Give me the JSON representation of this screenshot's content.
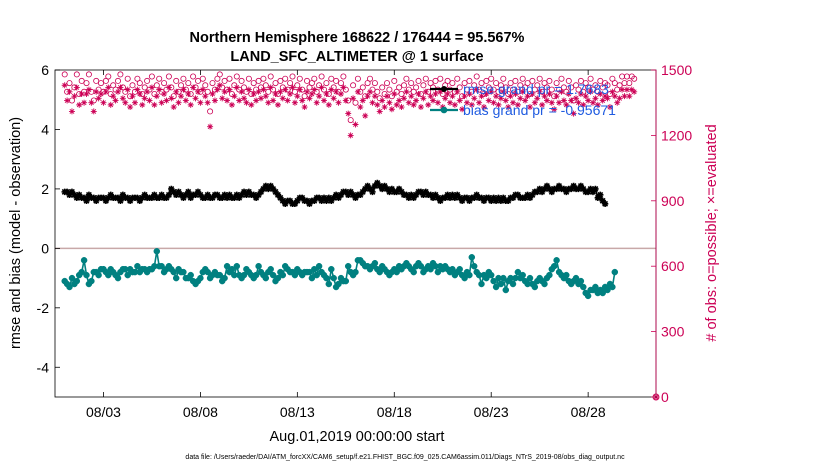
{
  "chart_data": {
    "type": "line",
    "title": "Northern Hemisphere 168622 / 176444 = 95.567%",
    "subtitle": "LAND_SFC_ALTIMETER @ 1 surface",
    "xlabel": "Aug.01,2019 00:00:00 start",
    "ylabel": "rmse and bias (model - observation)",
    "ylabel_right": "# of obs: o=possible; ×=evaluated",
    "xlim": [
      0,
      31
    ],
    "ylim": [
      -5,
      6
    ],
    "ylim_right": [
      0,
      1500
    ],
    "x_tick_positions": [
      2.5,
      7.5,
      12.5,
      17.5,
      22.5,
      27.5
    ],
    "x_tick_labels": [
      "08/03",
      "08/08",
      "08/13",
      "08/18",
      "08/23",
      "08/28"
    ],
    "y_ticks": [
      -4,
      -2,
      0,
      2,
      4,
      6
    ],
    "y_tick_labels": [
      "-4",
      "-2",
      "0",
      "2",
      "4",
      "6"
    ],
    "y_right_ticks": [
      0,
      300,
      600,
      900,
      1200,
      1500
    ],
    "y_right_tick_labels": [
      "0",
      "300",
      "600",
      "900",
      "1200",
      "1500"
    ],
    "zero_line": 0,
    "points_per_day": 8,
    "series": [
      {
        "name": "rmse",
        "legend": "rmse grand pr =  1.7683",
        "color": "#000000",
        "marker": "star-filled",
        "axis": "left",
        "values": [
          1.9,
          1.9,
          1.8,
          1.9,
          1.8,
          1.7,
          1.8,
          1.7,
          1.7,
          1.6,
          1.8,
          1.7,
          1.7,
          1.6,
          1.7,
          1.7,
          1.7,
          1.6,
          1.7,
          1.8,
          1.7,
          1.7,
          1.7,
          1.6,
          1.8,
          1.7,
          1.7,
          1.6,
          1.7,
          1.7,
          1.7,
          1.6,
          1.7,
          1.8,
          1.7,
          1.7,
          1.7,
          1.8,
          1.7,
          1.7,
          1.8,
          1.7,
          1.7,
          1.8,
          2.0,
          1.9,
          1.8,
          1.9,
          1.8,
          1.7,
          1.8,
          1.9,
          1.7,
          1.8,
          1.8,
          1.9,
          1.8,
          1.7,
          1.7,
          1.8,
          1.7,
          1.7,
          1.8,
          1.8,
          1.7,
          1.7,
          1.8,
          1.7,
          1.8,
          1.7,
          1.7,
          1.8,
          1.7,
          1.8,
          1.9,
          1.8,
          1.9,
          1.8,
          1.8,
          1.7,
          1.8,
          1.9,
          2.0,
          2.1,
          2.0,
          2.1,
          2.0,
          1.9,
          1.8,
          1.7,
          1.6,
          1.5,
          1.6,
          1.6,
          1.5,
          1.5,
          1.6,
          1.7,
          1.7,
          1.6,
          1.6,
          1.5,
          1.6,
          1.6,
          1.7,
          1.7,
          1.6,
          1.7,
          1.6,
          1.7,
          1.6,
          1.7,
          1.8,
          1.7,
          1.8,
          1.9,
          1.9,
          1.8,
          1.9,
          1.8,
          1.7,
          1.8,
          1.8,
          1.9,
          2.0,
          2.1,
          2.0,
          1.9,
          2.1,
          2.2,
          2.1,
          2.0,
          2.1,
          2.0,
          1.9,
          2.0,
          1.9,
          1.9,
          2.0,
          1.9,
          1.8,
          1.8,
          1.7,
          1.8,
          1.7,
          1.8,
          1.9,
          1.9,
          1.8,
          1.9,
          1.8,
          1.8,
          1.7,
          1.8,
          1.7,
          1.6,
          1.7,
          1.7,
          1.8,
          1.7,
          1.8,
          1.7,
          1.8,
          1.7,
          1.6,
          1.7,
          1.7,
          1.6,
          1.7,
          1.7,
          1.8,
          1.7,
          1.7,
          1.6,
          1.7,
          1.7,
          1.6,
          1.7,
          1.6,
          1.7,
          1.6,
          1.7,
          1.6,
          1.6,
          1.7,
          1.7,
          1.8,
          1.8,
          1.7,
          1.7,
          1.7,
          1.8,
          1.7,
          1.8,
          1.9,
          1.9,
          2.0,
          1.9,
          2.0,
          2.1,
          2.0,
          1.9,
          2.0,
          2.0,
          2.1,
          2.0,
          2.0,
          1.9,
          2.0,
          2.0,
          2.1,
          2.0,
          2.0,
          2.1,
          2.0,
          1.9,
          1.9,
          2.0,
          1.9,
          2.0,
          1.7,
          1.8,
          1.6,
          1.5
        ]
      },
      {
        "name": "bias",
        "legend": "bias grand pr = -0.95671",
        "color": "#008080",
        "marker": "circle-filled",
        "axis": "left",
        "values": [
          -1.1,
          -1.2,
          -1.3,
          -1.0,
          -1.2,
          -1.1,
          -0.9,
          -0.8,
          -0.4,
          -0.9,
          -1.2,
          -1.1,
          -0.8,
          -0.8,
          -0.9,
          -0.7,
          -0.7,
          -0.8,
          -0.9,
          -0.7,
          -0.8,
          -0.9,
          -1.0,
          -0.8,
          -0.7,
          -0.7,
          -0.9,
          -0.7,
          -0.8,
          -0.8,
          -0.6,
          -0.8,
          -0.7,
          -0.7,
          -0.8,
          -0.7,
          -0.7,
          -0.6,
          -0.1,
          -0.6,
          -0.6,
          -0.8,
          -0.7,
          -0.6,
          -0.7,
          -0.8,
          -1.0,
          -0.7,
          -0.8,
          -0.8,
          -1.0,
          -1.0,
          -0.9,
          -1.1,
          -1.2,
          -1.1,
          -1.0,
          -0.8,
          -0.7,
          -0.8,
          -1.0,
          -0.9,
          -0.8,
          -0.9,
          -0.9,
          -1.1,
          -1.0,
          -0.6,
          -0.8,
          -0.7,
          -0.9,
          -0.6,
          -0.9,
          -1.0,
          -0.9,
          -0.7,
          -0.8,
          -0.9,
          -1.0,
          -0.9,
          -0.6,
          -0.8,
          -0.9,
          -1.0,
          -0.8,
          -0.7,
          -0.9,
          -1.1,
          -1.0,
          -0.8,
          -0.9,
          -0.6,
          -0.7,
          -0.8,
          -0.8,
          -0.9,
          -0.7,
          -0.8,
          -0.9,
          -0.8,
          -0.8,
          -0.8,
          -1.0,
          -0.7,
          -0.9,
          -0.6,
          -0.8,
          -0.9,
          -1.0,
          -1.2,
          -0.7,
          -1.0,
          -1.3,
          -1.2,
          -1.0,
          -1.1,
          -1.1,
          -0.6,
          -0.8,
          -0.9,
          -0.8,
          -0.4,
          -0.4,
          -0.5,
          -0.6,
          -0.6,
          -0.7,
          -0.6,
          -0.5,
          -0.7,
          -0.8,
          -0.6,
          -0.7,
          -0.8,
          -0.9,
          -0.8,
          -0.7,
          -0.8,
          -0.6,
          -0.7,
          -0.6,
          -0.5,
          -0.6,
          -0.7,
          -0.8,
          -0.6,
          -0.5,
          -0.6,
          -0.8,
          -0.7,
          -0.6,
          -0.7,
          -0.5,
          -0.6,
          -0.8,
          -0.6,
          -0.7,
          -0.6,
          -0.7,
          -0.8,
          -0.7,
          -0.9,
          -0.8,
          -0.7,
          -0.9,
          -1.0,
          -0.8,
          -0.9,
          -0.3,
          -0.6,
          -0.8,
          -0.9,
          -1.2,
          -0.9,
          -1.0,
          -0.8,
          -0.9,
          -1.1,
          -1.3,
          -1.0,
          -1.2,
          -1.0,
          -1.4,
          -1.1,
          -1.0,
          -1.2,
          -1.0,
          -0.8,
          -1.0,
          -0.9,
          -1.1,
          -1.2,
          -1.0,
          -1.2,
          -1.3,
          -1.1,
          -1.0,
          -1.1,
          -1.2,
          -1.0,
          -0.9,
          -0.7,
          -0.6,
          -0.4,
          -0.8,
          -0.9,
          -1.0,
          -0.9,
          -1.1,
          -1.2,
          -1.1,
          -1.0,
          -1.2,
          -1.1,
          -1.3,
          -1.5,
          -1.6,
          -1.4,
          -1.4,
          -1.3,
          -1.5,
          -1.4,
          -1.5,
          -1.3,
          -1.4,
          -1.2,
          -1.3,
          -0.8
        ]
      },
      {
        "name": "# of obs possible",
        "legend": "o=possible",
        "color": "#cc0055",
        "marker": "open-circle",
        "axis": "right",
        "values": [
          1480,
          1400,
          1440,
          1360,
          1420,
          1480,
          1390,
          1450,
          1400,
          1440,
          1480,
          1400,
          1360,
          1450,
          1410,
          1440,
          1400,
          1450,
          1470,
          1390,
          1430,
          1410,
          1450,
          1480,
          1420,
          1400,
          1460,
          1380,
          1430,
          1400,
          1460,
          1440,
          1390,
          1420,
          1450,
          1410,
          1470,
          1390,
          1430,
          1460,
          1400,
          1440,
          1410,
          1470,
          1420,
          1380,
          1450,
          1400,
          1430,
          1460,
          1410,
          1440,
          1390,
          1470,
          1420,
          1450,
          1400,
          1460,
          1430,
          1400,
          1310,
          1440,
          1410,
          1460,
          1480,
          1420,
          1450,
          1410,
          1460,
          1390,
          1430,
          1470,
          1410,
          1450,
          1420,
          1400,
          1460,
          1390,
          1440,
          1410,
          1450,
          1420,
          1460,
          1430,
          1400,
          1470,
          1410,
          1440,
          1390,
          1450,
          1420,
          1460,
          1410,
          1440,
          1470,
          1400,
          1430,
          1460,
          1410,
          1380,
          1450,
          1420,
          1440,
          1460,
          1400,
          1430,
          1470,
          1410,
          1440,
          1390,
          1460,
          1420,
          1450,
          1400,
          1440,
          1470,
          1410,
          1360,
          1270,
          1430,
          1350,
          1460,
          1400,
          1420,
          1380,
          1440,
          1460,
          1410,
          1440,
          1400,
          1370,
          1420,
          1390,
          1440,
          1410,
          1380,
          1450,
          1400,
          1420,
          1390,
          1430,
          1460,
          1410,
          1440,
          1400,
          1420,
          1450,
          1390,
          1430,
          1460,
          1400,
          1440,
          1420,
          1450,
          1410,
          1460,
          1390,
          1430,
          1450,
          1410,
          1440,
          1400,
          1460,
          1420,
          1380,
          1440,
          1410,
          1450,
          1400,
          1430,
          1470,
          1410,
          1440,
          1390,
          1450,
          1420,
          1460,
          1410,
          1440,
          1400,
          1430,
          1460,
          1420,
          1390,
          1440,
          1410,
          1450,
          1400,
          1430,
          1460,
          1420,
          1440,
          1390,
          1450,
          1410,
          1430,
          1460,
          1400,
          1440,
          1420,
          1450,
          1410,
          1380,
          1440,
          1410,
          1460,
          1420,
          1400,
          1450,
          1420,
          1360,
          1430,
          1410,
          1450,
          1400,
          1440,
          1420,
          1460,
          1410,
          1430,
          1400,
          1450,
          1420,
          1440,
          1430,
          1390,
          1460,
          1440,
          1410,
          1430,
          1470,
          1440,
          1470,
          1440,
          1470,
          1460
        ]
      },
      {
        "name": "# of obs evaluated",
        "legend": "×=evaluated",
        "color": "#cc0055",
        "marker": "asterisk",
        "axis": "right",
        "values": [
          1430,
          1360,
          1400,
          1310,
          1380,
          1420,
          1340,
          1390,
          1350,
          1390,
          1410,
          1350,
          1310,
          1400,
          1370,
          1390,
          1350,
          1400,
          1420,
          1340,
          1380,
          1360,
          1400,
          1420,
          1370,
          1350,
          1410,
          1330,
          1380,
          1350,
          1410,
          1390,
          1340,
          1370,
          1400,
          1360,
          1420,
          1340,
          1380,
          1410,
          1350,
          1390,
          1360,
          1420,
          1370,
          1330,
          1400,
          1350,
          1380,
          1410,
          1360,
          1390,
          1340,
          1420,
          1370,
          1400,
          1350,
          1410,
          1380,
          1350,
          1240,
          1390,
          1360,
          1410,
          1430,
          1370,
          1400,
          1360,
          1410,
          1340,
          1380,
          1420,
          1360,
          1400,
          1370,
          1350,
          1410,
          1340,
          1390,
          1360,
          1400,
          1370,
          1410,
          1380,
          1350,
          1420,
          1360,
          1390,
          1340,
          1400,
          1370,
          1410,
          1360,
          1390,
          1420,
          1350,
          1380,
          1410,
          1360,
          1330,
          1400,
          1370,
          1390,
          1410,
          1350,
          1380,
          1420,
          1360,
          1390,
          1340,
          1410,
          1370,
          1400,
          1350,
          1390,
          1420,
          1360,
          1300,
          1200,
          1370,
          1250,
          1400,
          1330,
          1360,
          1290,
          1380,
          1400,
          1350,
          1380,
          1340,
          1310,
          1360,
          1330,
          1380,
          1350,
          1320,
          1390,
          1340,
          1360,
          1330,
          1370,
          1400,
          1350,
          1380,
          1340,
          1360,
          1390,
          1330,
          1370,
          1400,
          1340,
          1380,
          1360,
          1390,
          1350,
          1400,
          1330,
          1370,
          1390,
          1350,
          1380,
          1340,
          1400,
          1360,
          1320,
          1380,
          1350,
          1390,
          1340,
          1370,
          1410,
          1350,
          1380,
          1330,
          1390,
          1360,
          1400,
          1350,
          1380,
          1340,
          1370,
          1400,
          1360,
          1330,
          1380,
          1350,
          1390,
          1340,
          1370,
          1400,
          1360,
          1380,
          1330,
          1390,
          1350,
          1370,
          1400,
          1340,
          1380,
          1360,
          1390,
          1350,
          1320,
          1380,
          1350,
          1400,
          1360,
          1340,
          1390,
          1360,
          1300,
          1370,
          1350,
          1390,
          1340,
          1380,
          1360,
          1400,
          1350,
          1370,
          1340,
          1390,
          1360,
          1380,
          1370,
          1330,
          1400,
          1380,
          1350,
          1370,
          1410,
          1380,
          1410,
          1380,
          1410,
          1400
        ]
      }
    ],
    "outlier_points": [
      {
        "x": 31,
        "possible": 0,
        "evaluated": 0
      }
    ]
  },
  "footer": {
    "text": "data file: /Users/raeder/DAI/ATM_forcXX/CAM6_setup/f.e21.FHIST_BGC.f09_025.CAM6assim.011/Diags_NTrS_2019-08/obs_diag_output.nc"
  },
  "colors": {
    "left_axis": "#000000",
    "right_axis": "#cc0055",
    "rmse": "#000000",
    "bias": "#008080",
    "obs": "#cc0055",
    "legend_text": "#1f5be0",
    "zero_line": "#c8a8a8"
  }
}
